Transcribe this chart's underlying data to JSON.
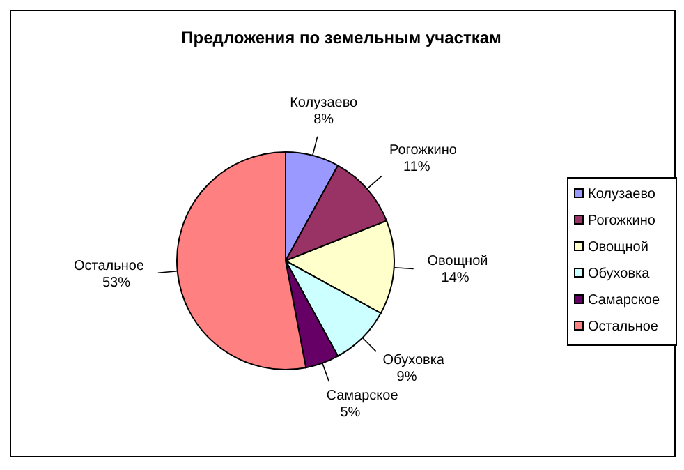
{
  "chart_data": {
    "type": "pie",
    "title": "Предложения по земельным участкам",
    "categories": [
      "Колузаево",
      "Рогожкино",
      "Овощной",
      "Обуховка",
      "Самарское",
      "Остальное"
    ],
    "values": [
      8,
      11,
      14,
      9,
      5,
      53
    ],
    "colors": [
      "#9999ff",
      "#993366",
      "#ffffcc",
      "#ccffff",
      "#660066",
      "#ff8080"
    ],
    "value_labels": [
      "8%",
      "11%",
      "14%",
      "9%",
      "5%",
      "53%"
    ],
    "legend": "right"
  }
}
